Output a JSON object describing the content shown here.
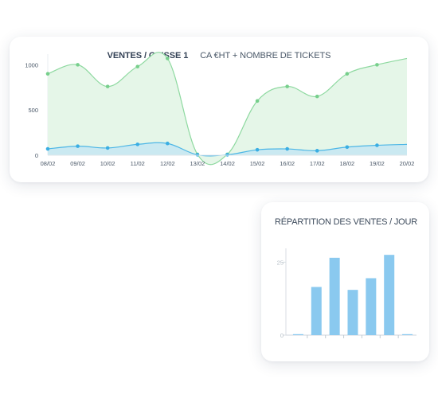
{
  "line_card": {
    "title": "VENTES / CAISSE 1",
    "subtitle": "CA €HT + NOMBRE DE TICKETS"
  },
  "bar_card": {
    "title": "RÉPARTITION DES VENTES / JOUR"
  },
  "colors": {
    "green_line": "#8ed9a0",
    "green_fill": "#e5f6e8",
    "blue_line": "#4cb6e6",
    "blue_fill": "#c6e8f2",
    "bar": "#8ac9ef",
    "text": "#3d4b5c"
  },
  "chart_data": [
    {
      "type": "area",
      "title": "VENTES / CAISSE 1",
      "subtitle": "CA €HT + NOMBRE DE TICKETS",
      "categories": [
        "08/02",
        "09/02",
        "10/02",
        "11/02",
        "12/02",
        "13/02",
        "14/02",
        "15/02",
        "16/02",
        "17/02",
        "18/02",
        "19/02",
        "20/02"
      ],
      "x_tick_labels": [
        "08/02",
        "09/02",
        "10/02",
        "11/02",
        "12/02",
        "13/02",
        "14/02",
        "15/02",
        "16/02",
        "17/02",
        "18/02",
        "19/02",
        "20/02"
      ],
      "y_tick_labels": [
        "0",
        "500",
        "1000"
      ],
      "ylim": [
        0,
        1100
      ],
      "series": [
        {
          "values": [
            900,
            1000,
            760,
            980,
            1070,
            10,
            10,
            600,
            760,
            650,
            900,
            1000,
            1070
          ]
        },
        {
          "values": [
            70,
            100,
            80,
            120,
            130,
            5,
            5,
            60,
            70,
            50,
            90,
            110,
            120
          ]
        }
      ],
      "grid": false
    },
    {
      "type": "bar",
      "title": "RÉPARTITION DES VENTES / JOUR",
      "categories": [
        "1",
        "2",
        "3",
        "4",
        "5",
        "6",
        "7"
      ],
      "values": [
        0,
        16.5,
        26.5,
        15.5,
        19.5,
        27.5,
        0
      ],
      "y_tick_labels": [
        "0",
        "25"
      ],
      "ylim": [
        0,
        30
      ],
      "grid": false
    }
  ]
}
